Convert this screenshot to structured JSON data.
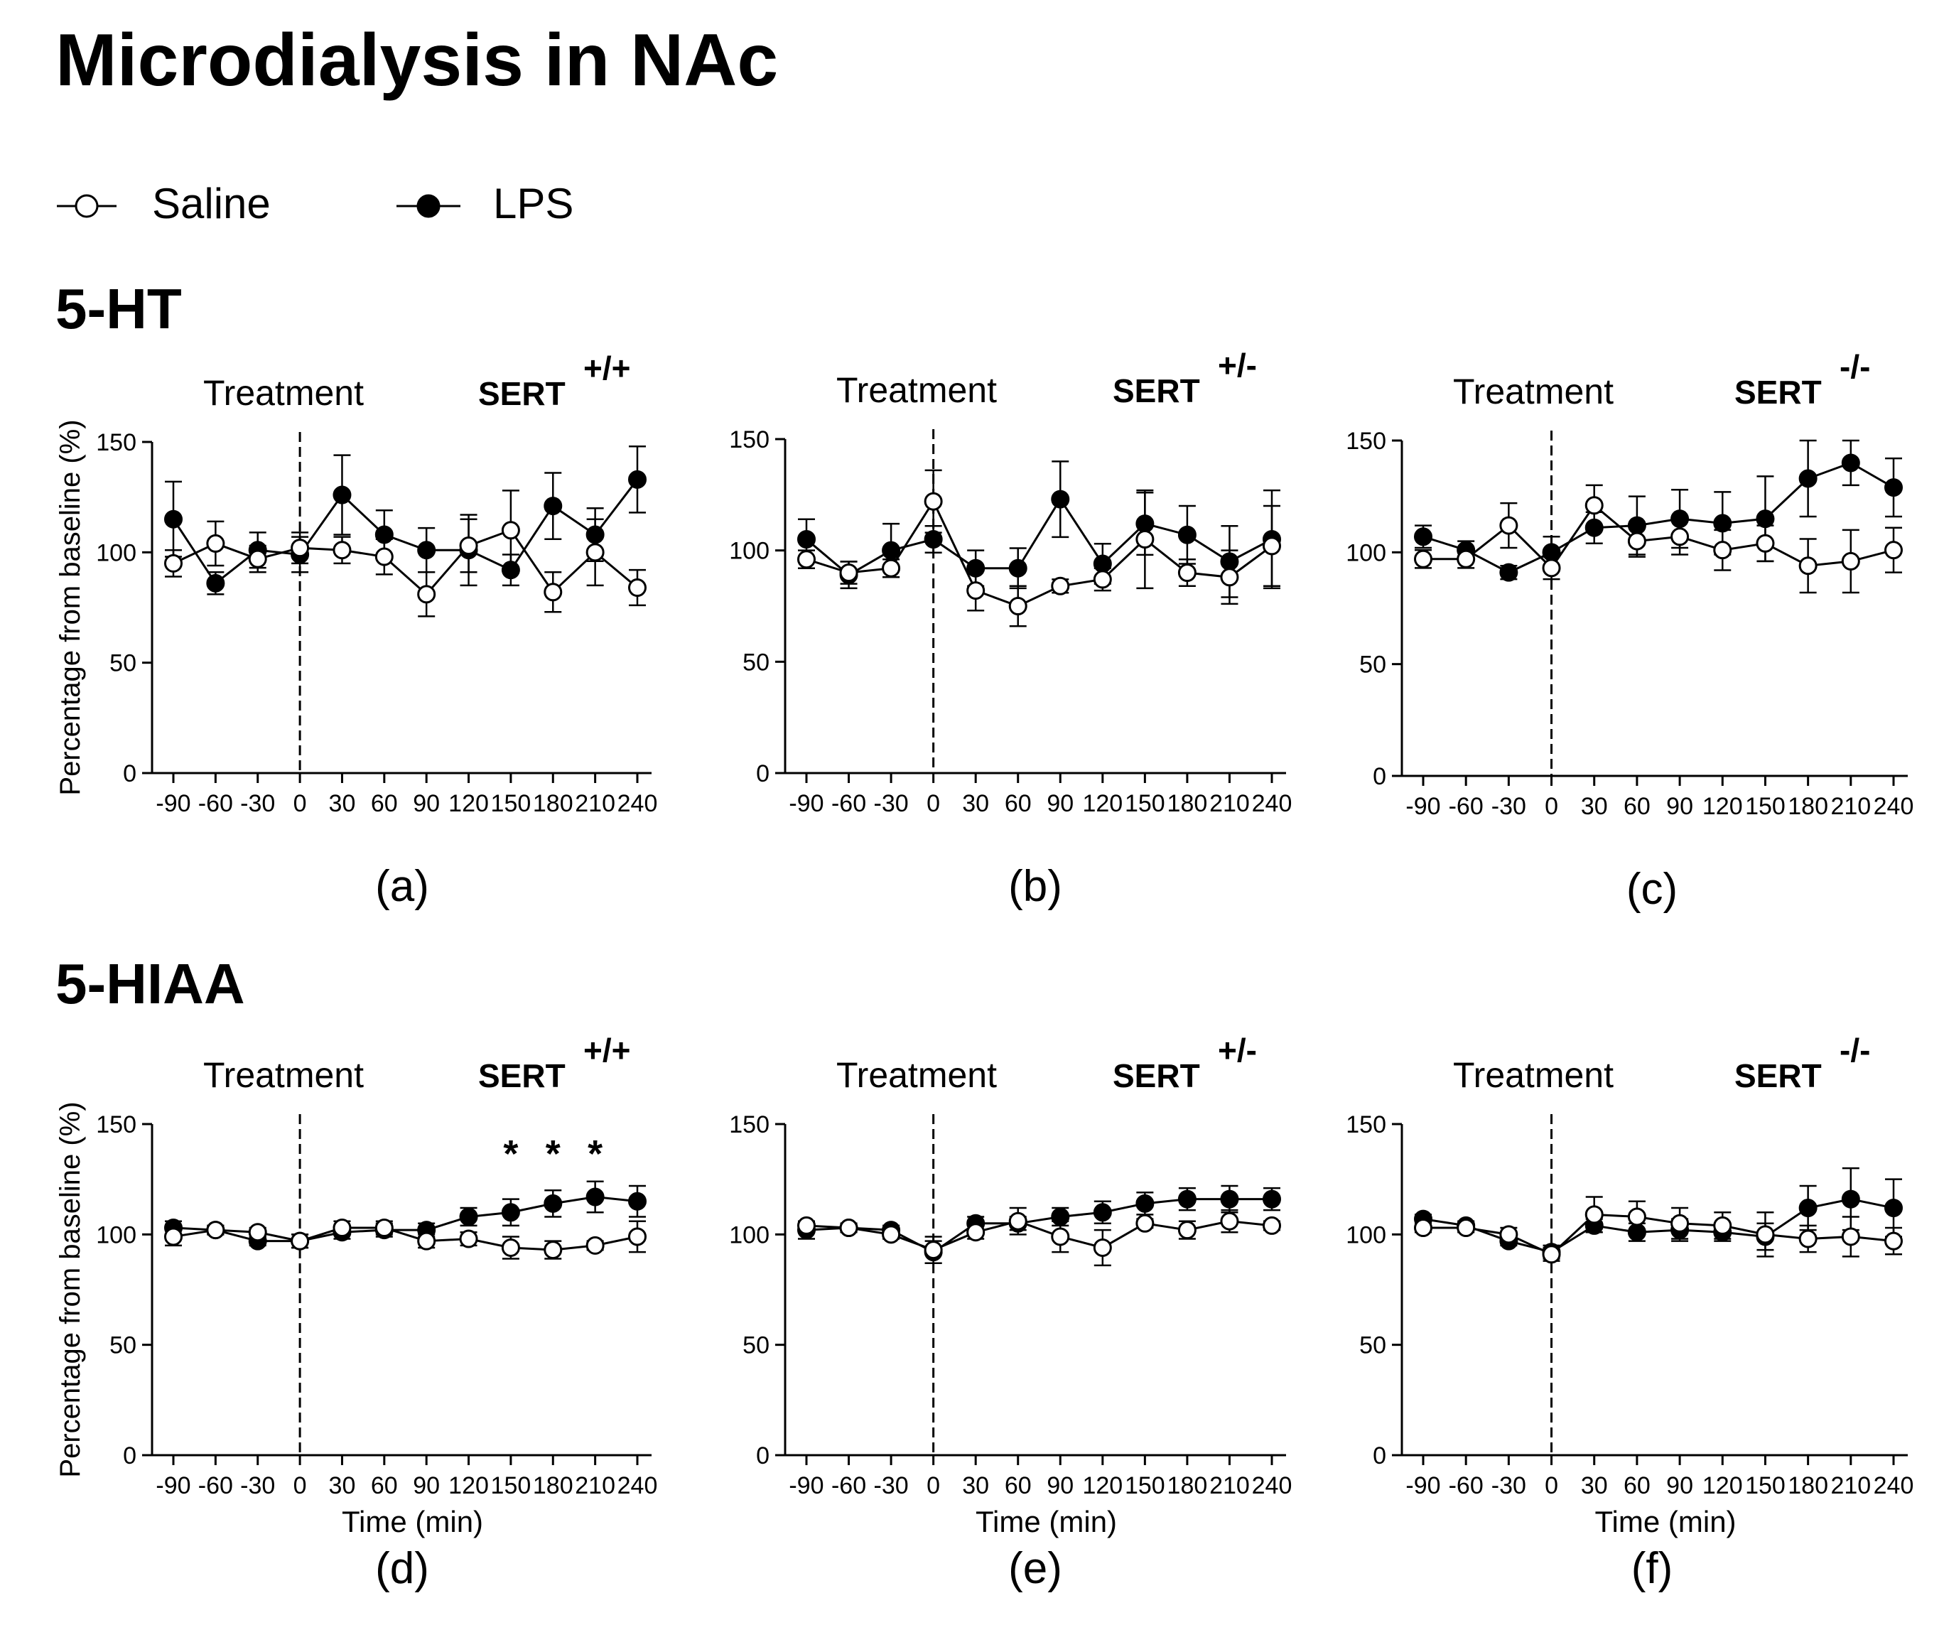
{
  "page": {
    "title": "Microdialysis in NAc",
    "legend": {
      "saline": {
        "label": "Saline",
        "marker": "open-circle",
        "fill": "#ffffff"
      },
      "lps": {
        "label": "LPS",
        "marker": "filled-circle",
        "fill": "#000000"
      }
    },
    "sections": [
      {
        "key": "ht",
        "title": "5-HT"
      },
      {
        "key": "hiaa",
        "title": "5-HIAA"
      }
    ],
    "colors": {
      "ink": "#000000",
      "background": "#ffffff"
    }
  },
  "chart_data": [
    {
      "id": "a",
      "panel_label": "(a)",
      "section": "5-HT",
      "type": "line",
      "annotation": "Treatment",
      "genotype": "SERT",
      "genotype_superscript": "+/+",
      "x": [
        -90,
        -60,
        -30,
        0,
        30,
        60,
        90,
        120,
        150,
        180,
        210,
        240
      ],
      "x_tick_labels": [
        "-90",
        "-60",
        "-30",
        "0",
        "30",
        "60",
        "90",
        "120",
        "150",
        "180",
        "210",
        "240"
      ],
      "ylim": [
        0,
        150
      ],
      "y_ticks": [
        0,
        50,
        100,
        150
      ],
      "y_tick_labels": [
        "0",
        "50",
        "100",
        "150"
      ],
      "ylabel": "Percentage from baseline (%)",
      "xlabel": "",
      "treatment_line_x": 0,
      "significance": [],
      "significance_label": "*",
      "series": [
        {
          "name": "Saline",
          "marker": "open",
          "values": [
            95,
            104,
            97,
            102,
            101,
            98,
            81,
            103,
            110,
            82,
            100,
            84
          ],
          "errors": [
            6,
            10,
            6,
            7,
            6,
            8,
            10,
            12,
            18,
            9,
            15,
            8
          ]
        },
        {
          "name": "LPS",
          "marker": "filled",
          "values": [
            115,
            86,
            101,
            99,
            126,
            108,
            101,
            101,
            92,
            121,
            108,
            133
          ],
          "errors": [
            17,
            5,
            8,
            8,
            18,
            11,
            10,
            16,
            7,
            15,
            12,
            15
          ]
        }
      ]
    },
    {
      "id": "b",
      "panel_label": "(b)",
      "section": "5-HT",
      "type": "line",
      "annotation": "Treatment",
      "genotype": "SERT",
      "genotype_superscript": "+/-",
      "x": [
        -90,
        -60,
        -30,
        0,
        30,
        60,
        90,
        120,
        150,
        180,
        210,
        240
      ],
      "x_tick_labels": [
        "-90",
        "-60",
        "-30",
        "0",
        "30",
        "60",
        "90",
        "120",
        "150",
        "180",
        "210",
        "240"
      ],
      "ylim": [
        0,
        150
      ],
      "y_ticks": [
        0,
        50,
        100,
        150
      ],
      "y_tick_labels": [
        "0",
        "50",
        "100",
        "150"
      ],
      "ylabel": "",
      "xlabel": "",
      "treatment_line_x": 0,
      "significance": [],
      "significance_label": "*",
      "series": [
        {
          "name": "Saline",
          "marker": "open",
          "values": [
            96,
            90,
            92,
            122,
            82,
            75,
            84,
            87,
            105,
            90,
            88,
            102
          ],
          "errors": [
            4,
            5,
            4,
            14,
            9,
            9,
            3,
            5,
            22,
            6,
            12,
            18
          ]
        },
        {
          "name": "LPS",
          "marker": "filled",
          "values": [
            105,
            89,
            100,
            105,
            92,
            92,
            123,
            94,
            112,
            107,
            95,
            105
          ],
          "errors": [
            9,
            6,
            12,
            6,
            8,
            9,
            17,
            9,
            14,
            13,
            16,
            22
          ]
        }
      ]
    },
    {
      "id": "c",
      "panel_label": "(c)",
      "section": "5-HT",
      "type": "line",
      "annotation": "Treatment",
      "genotype": "SERT",
      "genotype_superscript": "-/-",
      "x": [
        -90,
        -60,
        -30,
        0,
        30,
        60,
        90,
        120,
        150,
        180,
        210,
        240
      ],
      "x_tick_labels": [
        "-90",
        "-60",
        "-30",
        "0",
        "30",
        "60",
        "90",
        "120",
        "150",
        "180",
        "210",
        "240"
      ],
      "ylim": [
        0,
        150
      ],
      "y_ticks": [
        0,
        50,
        100,
        150
      ],
      "y_tick_labels": [
        "0",
        "50",
        "100",
        "150"
      ],
      "ylabel": "",
      "xlabel": "",
      "treatment_line_x": 0,
      "significance": [],
      "significance_label": "*",
      "series": [
        {
          "name": "Saline",
          "marker": "open",
          "values": [
            97,
            97,
            112,
            93,
            121,
            105,
            107,
            101,
            104,
            94,
            96,
            101
          ],
          "errors": [
            4,
            4,
            10,
            5,
            9,
            7,
            8,
            9,
            8,
            12,
            14,
            10
          ]
        },
        {
          "name": "LPS",
          "marker": "filled",
          "values": [
            107,
            101,
            91,
            100,
            111,
            112,
            115,
            113,
            115,
            133,
            140,
            129
          ],
          "errors": [
            5,
            4,
            3,
            7,
            7,
            13,
            13,
            14,
            19,
            17,
            10,
            13
          ]
        }
      ]
    },
    {
      "id": "d",
      "panel_label": "(d)",
      "section": "5-HIAA",
      "type": "line",
      "annotation": "Treatment",
      "genotype": "SERT",
      "genotype_superscript": "+/+",
      "x": [
        -90,
        -60,
        -30,
        0,
        30,
        60,
        90,
        120,
        150,
        180,
        210,
        240
      ],
      "x_tick_labels": [
        "-90",
        "-60",
        "-30",
        "0",
        "30",
        "60",
        "90",
        "120",
        "150",
        "180",
        "210",
        "240"
      ],
      "ylim": [
        0,
        150
      ],
      "y_ticks": [
        0,
        50,
        100,
        150
      ],
      "y_tick_labels": [
        "0",
        "50",
        "100",
        "150"
      ],
      "ylabel": "Percentage from baseline (%)",
      "xlabel": "Time (min)",
      "treatment_line_x": 0,
      "significance": [
        150,
        180,
        210
      ],
      "significance_label": "*",
      "series": [
        {
          "name": "Saline",
          "marker": "open",
          "values": [
            99,
            102,
            101,
            97,
            103,
            103,
            97,
            98,
            94,
            93,
            95,
            99
          ],
          "errors": [
            4,
            2,
            2,
            3,
            3,
            3,
            3,
            3,
            5,
            4,
            2,
            7
          ]
        },
        {
          "name": "LPS",
          "marker": "filled",
          "values": [
            103,
            102,
            97,
            97,
            101,
            102,
            102,
            108,
            110,
            114,
            117,
            115
          ],
          "errors": [
            3,
            2,
            2,
            3,
            3,
            3,
            3,
            4,
            6,
            6,
            7,
            7
          ]
        }
      ]
    },
    {
      "id": "e",
      "panel_label": "(e)",
      "section": "5-HIAA",
      "type": "line",
      "annotation": "Treatment",
      "genotype": "SERT",
      "genotype_superscript": "+/-",
      "x": [
        -90,
        -60,
        -30,
        0,
        30,
        60,
        90,
        120,
        150,
        180,
        210,
        240
      ],
      "x_tick_labels": [
        "-90",
        "-60",
        "-30",
        "0",
        "30",
        "60",
        "90",
        "120",
        "150",
        "180",
        "210",
        "240"
      ],
      "ylim": [
        0,
        150
      ],
      "y_ticks": [
        0,
        50,
        100,
        150
      ],
      "y_tick_labels": [
        "0",
        "50",
        "100",
        "150"
      ],
      "ylabel": "",
      "xlabel": "Time (min)",
      "treatment_line_x": 0,
      "significance": [],
      "significance_label": "*",
      "series": [
        {
          "name": "Saline",
          "marker": "open",
          "values": [
            104,
            103,
            100,
            93,
            101,
            106,
            99,
            94,
            105,
            102,
            106,
            104
          ],
          "errors": [
            2,
            2,
            2,
            6,
            3,
            6,
            7,
            8,
            2,
            4,
            5,
            2
          ]
        },
        {
          "name": "LPS",
          "marker": "filled",
          "values": [
            102,
            103,
            102,
            92,
            105,
            105,
            108,
            110,
            114,
            116,
            116,
            116
          ],
          "errors": [
            4,
            2,
            2,
            5,
            3,
            3,
            4,
            5,
            5,
            5,
            6,
            5
          ]
        }
      ]
    },
    {
      "id": "f",
      "panel_label": "(f)",
      "section": "5-HIAA",
      "type": "line",
      "annotation": "Treatment",
      "genotype": "SERT",
      "genotype_superscript": "-/-",
      "x": [
        -90,
        -60,
        -30,
        0,
        30,
        60,
        90,
        120,
        150,
        180,
        210,
        240
      ],
      "x_tick_labels": [
        "-90",
        "-60",
        "-30",
        "0",
        "30",
        "60",
        "90",
        "120",
        "150",
        "180",
        "210",
        "240"
      ],
      "ylim": [
        0,
        150
      ],
      "y_ticks": [
        0,
        50,
        100,
        150
      ],
      "y_tick_labels": [
        "0",
        "50",
        "100",
        "150"
      ],
      "ylabel": "",
      "xlabel": "Time (min)",
      "treatment_line_x": 0,
      "significance": [],
      "significance_label": "*",
      "series": [
        {
          "name": "Saline",
          "marker": "open",
          "values": [
            103,
            103,
            100,
            91,
            109,
            108,
            105,
            104,
            100,
            98,
            99,
            97
          ],
          "errors": [
            2,
            2,
            3,
            3,
            8,
            7,
            7,
            6,
            10,
            6,
            9,
            6
          ]
        },
        {
          "name": "LPS",
          "marker": "filled",
          "values": [
            107,
            104,
            97,
            92,
            104,
            101,
            102,
            101,
            99,
            112,
            116,
            112
          ],
          "errors": [
            2,
            2,
            2,
            3,
            3,
            4,
            5,
            4,
            6,
            10,
            14,
            13
          ]
        }
      ]
    }
  ]
}
